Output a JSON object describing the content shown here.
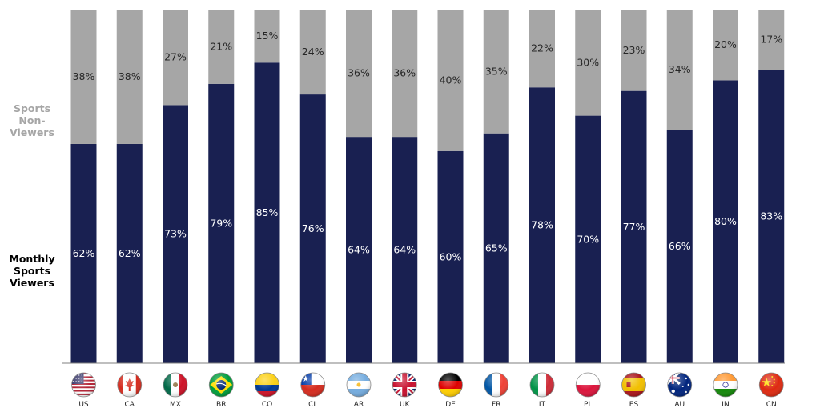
{
  "labels": {
    "non_viewers": "Sports\nNon-\nViewers",
    "viewers": "Monthly\nSports\nViewers"
  },
  "colors": {
    "viewers": "#192051",
    "non_viewers": "#a6a6a6",
    "non_viewers_label": "#a6a6a6",
    "viewers_label": "#000000",
    "axis": "#7f7f7f"
  },
  "chart_data": {
    "type": "bar",
    "stacked": true,
    "normalized": true,
    "categories": [
      "US",
      "CA",
      "MX",
      "BR",
      "CO",
      "CL",
      "AR",
      "UK",
      "DE",
      "FR",
      "IT",
      "PL",
      "ES",
      "AU",
      "IN",
      "CN"
    ],
    "series": [
      {
        "name": "Monthly Sports Viewers",
        "values": [
          62,
          62,
          73,
          79,
          85,
          76,
          64,
          64,
          60,
          65,
          78,
          70,
          77,
          66,
          80,
          83
        ]
      },
      {
        "name": "Sports Non-Viewers",
        "values": [
          38,
          38,
          27,
          21,
          15,
          24,
          36,
          36,
          40,
          35,
          22,
          30,
          23,
          34,
          20,
          17
        ]
      }
    ],
    "ylim": [
      0,
      100
    ],
    "value_suffix": "%",
    "grid": false,
    "legend": "left",
    "flag_icons": [
      "flag-us-icon",
      "flag-ca-icon",
      "flag-mx-icon",
      "flag-br-icon",
      "flag-co-icon",
      "flag-cl-icon",
      "flag-ar-icon",
      "flag-uk-icon",
      "flag-de-icon",
      "flag-fr-icon",
      "flag-it-icon",
      "flag-pl-icon",
      "flag-es-icon",
      "flag-au-icon",
      "flag-in-icon",
      "flag-cn-icon"
    ]
  }
}
